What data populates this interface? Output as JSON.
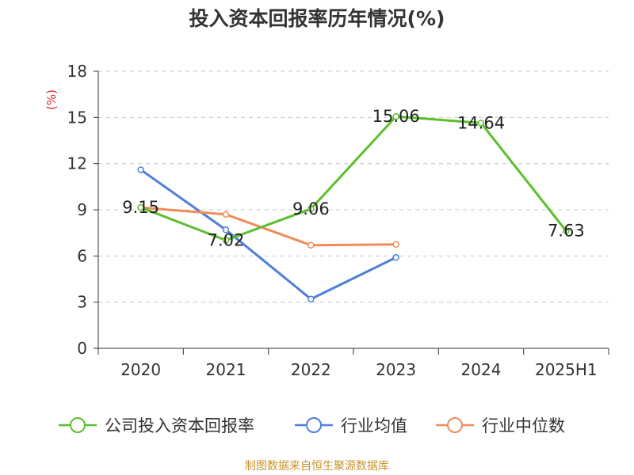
{
  "colors": {
    "company": "#5cbf2a",
    "industry_avg": "#4f7fdc",
    "industry_median": "#f08c5a",
    "grid": "#c8c8c8",
    "axis": "#333333",
    "unit_label": "#d7262c",
    "source": "#c8932f"
  },
  "chart_data": {
    "type": "line",
    "title": "投入资本回报率历年情况(%)",
    "ylabel": "(%)",
    "xlabel": "",
    "ylim": [
      0,
      18
    ],
    "yticks": [
      0,
      3,
      6,
      9,
      12,
      15,
      18
    ],
    "grid": true,
    "legend_position": "bottom",
    "categories": [
      "2020",
      "2021",
      "2022",
      "2023",
      "2024",
      "2025H1"
    ],
    "series": [
      {
        "name": "公司投入资本回报率",
        "values": [
          9.15,
          7.02,
          9.06,
          15.06,
          14.64,
          7.63
        ],
        "labels": [
          "9.15",
          "7.02",
          "9.06",
          "15.06",
          "14.64",
          "7.63"
        ]
      },
      {
        "name": "行业均值",
        "values": [
          11.6,
          7.7,
          3.2,
          5.9,
          null,
          null
        ]
      },
      {
        "name": "行业中位数",
        "values": [
          9.15,
          8.7,
          6.7,
          6.75,
          null,
          null
        ]
      }
    ]
  },
  "source_text": "制图数据来自恒生聚源数据库"
}
